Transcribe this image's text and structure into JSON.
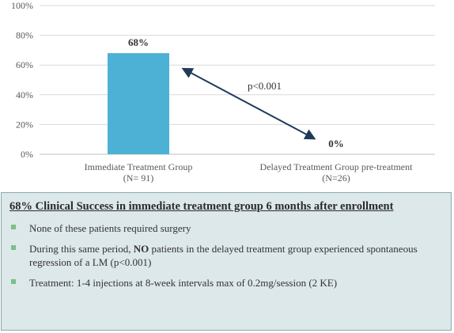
{
  "chart_data": {
    "type": "bar",
    "categories": [
      {
        "line1": "Immediate Treatment Group",
        "line2": "(N= 91)"
      },
      {
        "line1": "Delayed Treatment Group pre-treatment",
        "line2": "(N=26)"
      }
    ],
    "values": [
      68,
      0
    ],
    "data_labels": [
      "68%",
      "0%"
    ],
    "ylim": [
      0,
      100
    ],
    "yticks": [
      "0%",
      "20%",
      "40%",
      "60%",
      "80%",
      "100%"
    ],
    "grid": true,
    "bar_color": "#4db1d6",
    "annotation": {
      "text": "p<0.001",
      "arrow": "double-headed, from 68% bar to 0% bar"
    }
  },
  "summary": {
    "title": "68% Clinical Success in immediate treatment group 6 months after enrollment",
    "bullets": [
      {
        "parts": [
          {
            "text": "None of these patients required surgery",
            "bold": false
          }
        ]
      },
      {
        "parts": [
          {
            "text": "During this same period, ",
            "bold": false
          },
          {
            "text": "NO",
            "bold": true
          },
          {
            "text": " patients in the delayed treatment group experienced spontaneous regression of a LM (p<0.001)",
            "bold": false
          }
        ]
      },
      {
        "parts": [
          {
            "text": "Treatment: 1-4 injections at 8-week intervals max of 0.2mg/session (2 KE)",
            "bold": false
          }
        ]
      }
    ],
    "box_color": "#dde8ea",
    "bullet_color": "#7bbf8a"
  }
}
